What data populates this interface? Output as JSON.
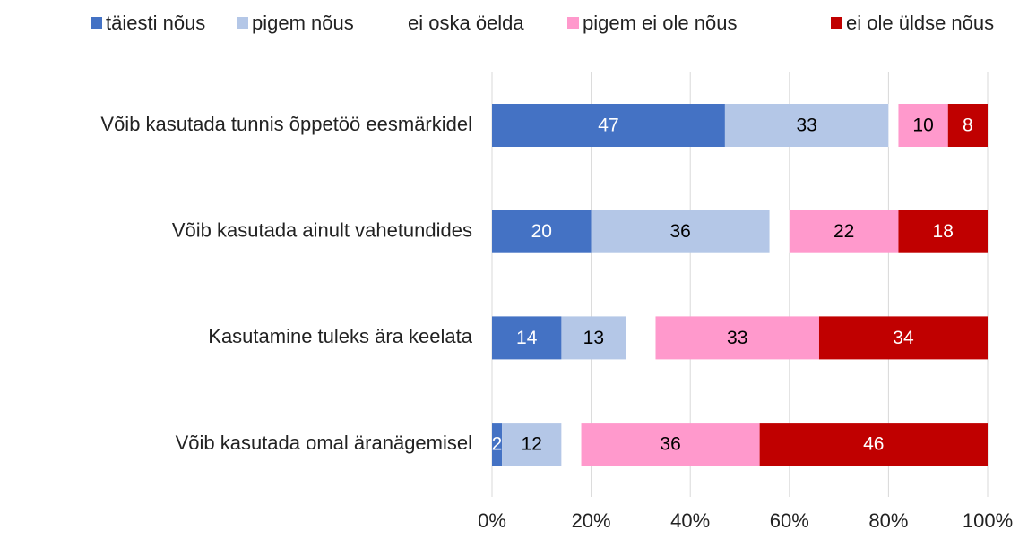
{
  "chart_data": {
    "type": "stacked_bar_horizontal",
    "categories": [
      "Võib kasutada tunnis õppetöö eesmärkidel",
      "Võib kasutada ainult vahetundides",
      "Kasutamine tuleks ära keelata",
      "Võib kasutada omal äranägemisel"
    ],
    "series": [
      {
        "name": "täiesti nõus",
        "color": "#4472c4",
        "values": [
          47,
          20,
          14,
          2
        ]
      },
      {
        "name": "pigem nõus",
        "color": "#b4c7e7",
        "values": [
          33,
          36,
          13,
          12
        ]
      },
      {
        "name": "ei oska öelda",
        "color": "#ffffff",
        "values": [
          2,
          4,
          6,
          4
        ]
      },
      {
        "name": "pigem ei ole nõus",
        "color": "#ff99cc",
        "values": [
          10,
          22,
          33,
          36
        ]
      },
      {
        "name": "ei ole üldse nõus",
        "color": "#c00000",
        "values": [
          8,
          18,
          34,
          46
        ]
      }
    ],
    "xlim": [
      0,
      100
    ],
    "xticks": [
      {
        "value": 0,
        "label": "0%"
      },
      {
        "value": 20,
        "label": "20%"
      },
      {
        "value": 40,
        "label": "40%"
      },
      {
        "value": 60,
        "label": "60%"
      },
      {
        "value": 80,
        "label": "80%"
      },
      {
        "value": 100,
        "label": "100%"
      }
    ],
    "grid": true,
    "legend": "top",
    "data_labels_hidden_for": [
      "ei oska öelda"
    ]
  }
}
